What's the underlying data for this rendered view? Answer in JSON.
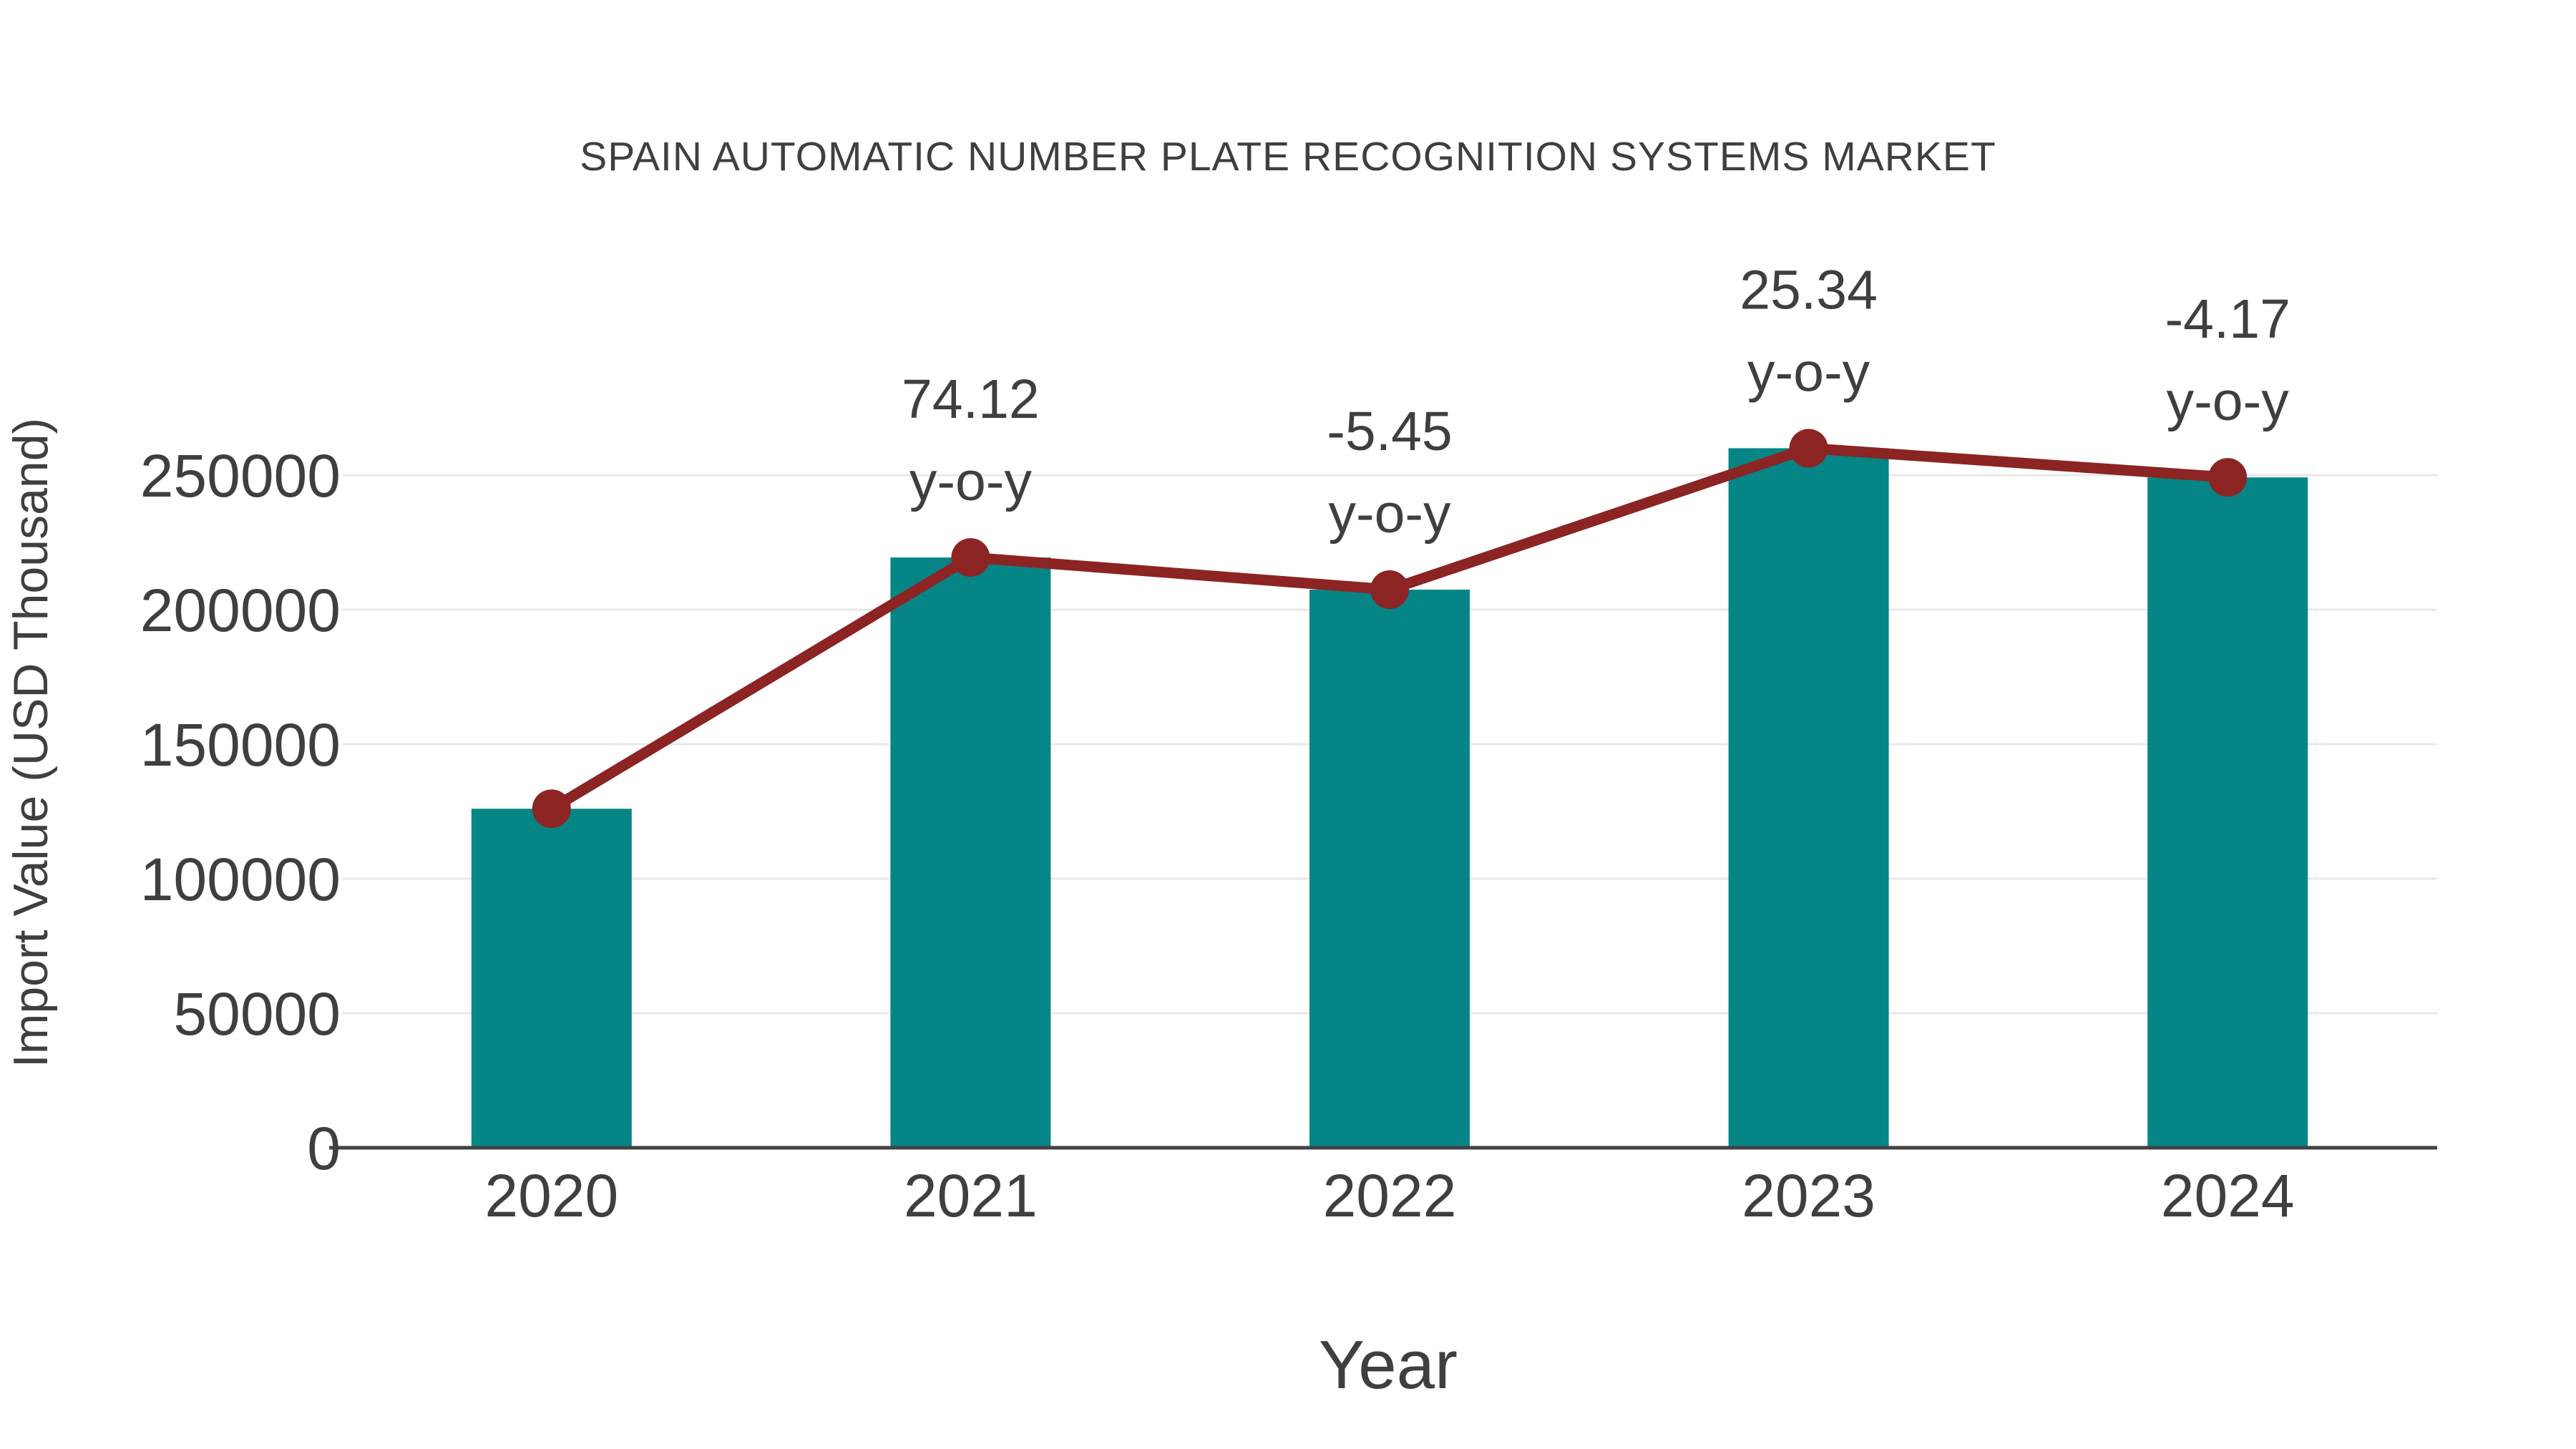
{
  "title": "SPAIN AUTOMATIC NUMBER PLATE RECOGNITION SYSTEMS MARKET",
  "chart_data": {
    "type": "bar",
    "overlay": "line",
    "categories": [
      "2020",
      "2021",
      "2022",
      "2023",
      "2024"
    ],
    "series": [
      {
        "name": "Import Value bars",
        "type": "bar",
        "values": [
          126000,
          219392,
          207436,
          260000,
          249158
        ]
      },
      {
        "name": "Import Value trend",
        "type": "line",
        "values": [
          126000,
          219392,
          207436,
          260000,
          249158
        ]
      }
    ],
    "annotations": [
      {
        "category": "2021",
        "value_text": "74.12",
        "label_text": "y-o-y"
      },
      {
        "category": "2022",
        "value_text": "-5.45",
        "label_text": "y-o-y"
      },
      {
        "category": "2023",
        "value_text": "25.34",
        "label_text": "y-o-y"
      },
      {
        "category": "2024",
        "value_text": "-4.17",
        "label_text": "y-o-y"
      }
    ],
    "title": "SPAIN AUTOMATIC NUMBER PLATE RECOGNITION SYSTEMS MARKET",
    "xlabel": "Year",
    "ylabel": "Import Value (USD Thousand)",
    "yticks": [
      0,
      50000,
      100000,
      150000,
      200000,
      250000
    ],
    "ylim": [
      0,
      278000
    ],
    "grid": "horizontal",
    "legend": "none",
    "colors": {
      "bar": "#068586",
      "line": "#8b2423",
      "marker": "#8b2423",
      "text": "#3f3f3f",
      "grid": "#e8e8e8",
      "axis": "#424242",
      "background": "#ffffff"
    }
  }
}
